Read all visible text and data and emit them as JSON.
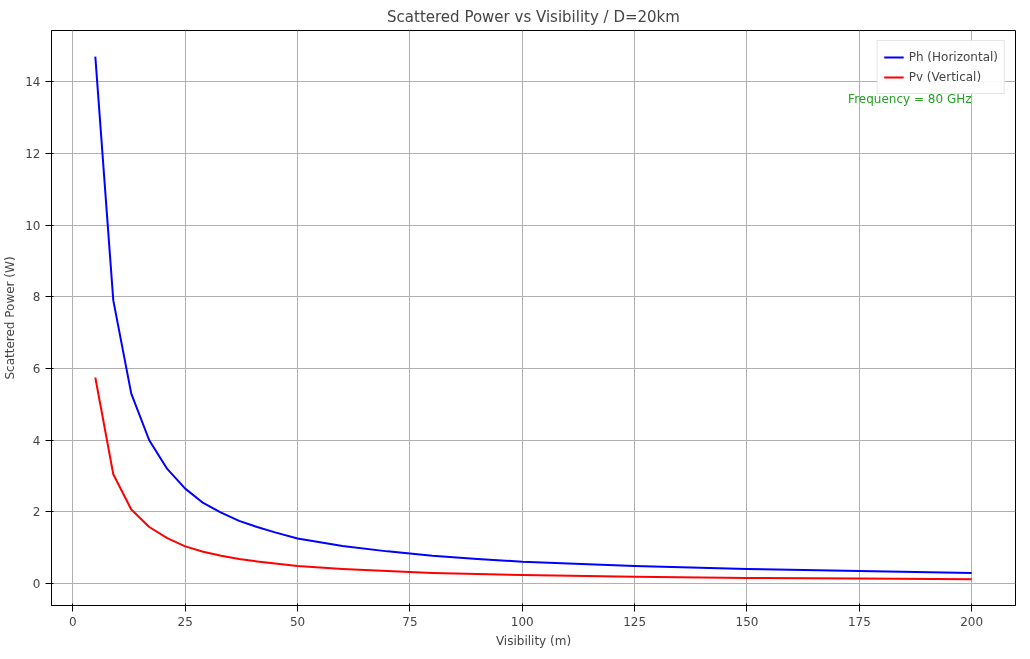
{
  "chart_data": {
    "type": "line",
    "title": "Scattered Power vs Visibility / D=20km",
    "xlabel": "Visibility (m)",
    "ylabel": "Scattered Power (W)",
    "x": [
      5,
      9,
      13,
      17,
      21,
      25,
      29,
      33,
      37,
      41,
      45,
      50,
      60,
      70,
      80,
      90,
      100,
      125,
      150,
      175,
      200
    ],
    "series": [
      {
        "name": "Ph (Horizontal)",
        "color": "#0000ff",
        "values": [
          14.7,
          7.9,
          5.3,
          4.0,
          3.2,
          2.65,
          2.25,
          1.98,
          1.75,
          1.58,
          1.43,
          1.26,
          1.05,
          0.9,
          0.78,
          0.69,
          0.61,
          0.49,
          0.41,
          0.35,
          0.3
        ]
      },
      {
        "name": "Pv (Vertical)",
        "color": "#ff0000",
        "values": [
          5.75,
          3.05,
          2.07,
          1.58,
          1.27,
          1.04,
          0.89,
          0.78,
          0.69,
          0.62,
          0.56,
          0.49,
          0.41,
          0.35,
          0.3,
          0.27,
          0.24,
          0.19,
          0.16,
          0.14,
          0.12
        ]
      }
    ],
    "annotations": [
      "Frequency = 80 GHz"
    ],
    "xlim": [
      -4.75,
      209.75
    ],
    "ylim": [
      -0.61,
      15.43
    ],
    "xticks": [
      0,
      25,
      50,
      75,
      100,
      125,
      150,
      175,
      200
    ],
    "yticks": [
      0,
      2,
      4,
      6,
      8,
      10,
      12,
      14
    ],
    "grid": true,
    "legend": "top right",
    "marker": "none",
    "line_style": "solid"
  }
}
